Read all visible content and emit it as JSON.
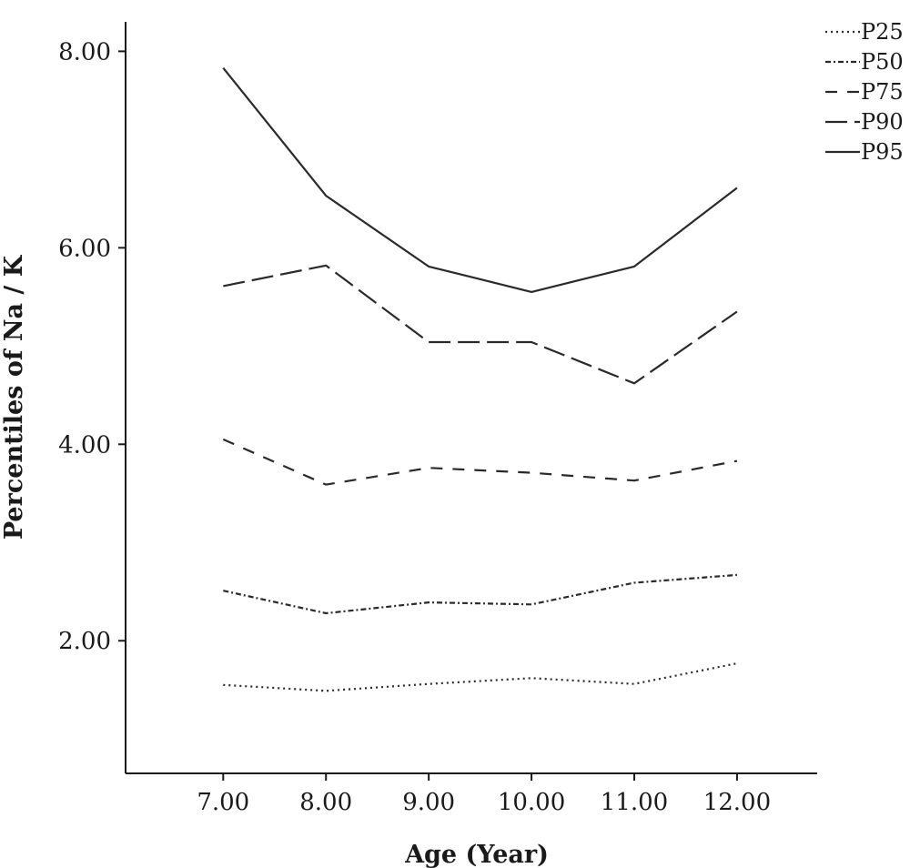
{
  "chart_data": {
    "type": "line",
    "title": "",
    "xlabel": "Age (Year)",
    "ylabel": "Percentiles of Na / K",
    "x": [
      7,
      8,
      9,
      10,
      11,
      12
    ],
    "x_tick_labels": [
      "7.00",
      "8.00",
      "9.00",
      "10.00",
      "11.00",
      "12.00"
    ],
    "xlim": [
      6.05,
      12.78
    ],
    "y_ticks": [
      2,
      4,
      6,
      8
    ],
    "y_tick_labels": [
      "2.00",
      "4.00",
      "6.00",
      "8.00"
    ],
    "ylim": [
      0.65,
      8.3
    ],
    "grid": false,
    "legend_position": "top-right",
    "series": [
      {
        "name": "P25",
        "dash": "dotted",
        "values": [
          1.55,
          1.49,
          1.56,
          1.62,
          1.56,
          1.77
        ]
      },
      {
        "name": "P50",
        "dash": "dash-dot",
        "values": [
          2.51,
          2.28,
          2.39,
          2.37,
          2.59,
          2.67
        ]
      },
      {
        "name": "P75",
        "dash": "medium-dash",
        "values": [
          4.05,
          3.59,
          3.76,
          3.71,
          3.63,
          3.83
        ]
      },
      {
        "name": "P90",
        "dash": "long-dash",
        "values": [
          5.61,
          5.82,
          5.04,
          5.04,
          4.62,
          5.35
        ]
      },
      {
        "name": "P95",
        "dash": "solid",
        "values": [
          7.83,
          6.53,
          5.81,
          5.55,
          5.81,
          6.61
        ]
      }
    ]
  }
}
